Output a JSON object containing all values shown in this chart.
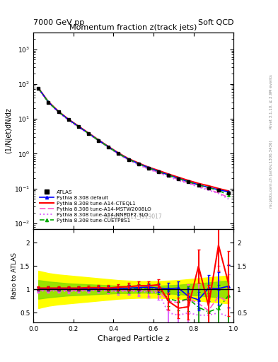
{
  "title_top_left": "7000 GeV pp",
  "title_top_right": "Soft QCD",
  "main_title": "Momentum fraction z(track jets)",
  "watermark": "ATLAS_2011_I919017",
  "right_label_top": "Rivet 3.1.10, ≥ 2.9M events",
  "right_label_bottom": "mcplots.cern.ch [arXiv:1306.3436]",
  "xlabel": "Charged Particle z",
  "ylabel_main": "(1/Njet)dN/dz",
  "ylabel_ratio": "Ratio to ATLAS",
  "xlim": [
    0.0,
    1.0
  ],
  "ylim_main": [
    0.007,
    3000
  ],
  "ylim_ratio": [
    0.3,
    2.3
  ],
  "z_values": [
    0.025,
    0.075,
    0.125,
    0.175,
    0.225,
    0.275,
    0.325,
    0.375,
    0.425,
    0.475,
    0.525,
    0.575,
    0.625,
    0.675,
    0.725,
    0.775,
    0.825,
    0.875,
    0.925,
    0.975
  ],
  "atlas_y": [
    75.0,
    30.0,
    16.0,
    9.5,
    6.0,
    3.8,
    2.4,
    1.55,
    1.0,
    0.68,
    0.5,
    0.38,
    0.3,
    0.24,
    0.19,
    0.155,
    0.125,
    0.105,
    0.09,
    0.075
  ],
  "atlas_yerr": [
    3.0,
    1.2,
    0.65,
    0.4,
    0.25,
    0.15,
    0.1,
    0.06,
    0.04,
    0.03,
    0.02,
    0.015,
    0.012,
    0.01,
    0.008,
    0.006,
    0.005,
    0.005,
    0.005,
    0.005
  ],
  "pythia_default_y": [
    76.0,
    30.5,
    16.2,
    9.6,
    6.1,
    3.85,
    2.45,
    1.58,
    1.02,
    0.7,
    0.52,
    0.4,
    0.31,
    0.245,
    0.195,
    0.158,
    0.128,
    0.108,
    0.092,
    0.08
  ],
  "pythia_cteql1_y": [
    77.0,
    31.0,
    16.5,
    9.8,
    6.2,
    3.95,
    2.5,
    1.6,
    1.05,
    0.72,
    0.54,
    0.41,
    0.33,
    0.26,
    0.21,
    0.17,
    0.14,
    0.12,
    0.1,
    0.085
  ],
  "pythia_mstw_y": [
    74.0,
    29.5,
    15.8,
    9.3,
    5.9,
    3.75,
    2.38,
    1.52,
    0.98,
    0.67,
    0.49,
    0.37,
    0.29,
    0.23,
    0.18,
    0.145,
    0.115,
    0.095,
    0.075,
    0.055
  ],
  "pythia_nnpdf_y": [
    73.0,
    29.0,
    15.5,
    9.1,
    5.8,
    3.7,
    2.35,
    1.5,
    0.96,
    0.66,
    0.48,
    0.36,
    0.28,
    0.22,
    0.17,
    0.14,
    0.11,
    0.09,
    0.072,
    0.05
  ],
  "pythia_cuetp_y": [
    75.5,
    30.2,
    16.1,
    9.55,
    6.05,
    3.82,
    2.42,
    1.55,
    1.0,
    0.69,
    0.51,
    0.39,
    0.305,
    0.242,
    0.192,
    0.156,
    0.126,
    0.106,
    0.088,
    0.065
  ],
  "ratio_default_y": [
    1.01,
    1.02,
    1.01,
    1.01,
    1.02,
    1.01,
    1.02,
    1.02,
    1.02,
    1.03,
    1.04,
    1.05,
    1.03,
    1.02,
    1.03,
    0.85,
    0.78,
    1.03,
    1.02,
    1.07
  ],
  "ratio_cteql1_y": [
    1.03,
    1.03,
    1.03,
    1.03,
    1.03,
    1.04,
    1.04,
    1.03,
    1.05,
    1.06,
    1.08,
    1.08,
    1.1,
    0.75,
    0.6,
    0.63,
    1.5,
    0.65,
    1.95,
    1.13
  ],
  "ratio_mstw_y": [
    0.99,
    0.98,
    0.99,
    0.98,
    0.98,
    0.99,
    0.99,
    0.98,
    0.98,
    0.98,
    0.98,
    0.97,
    0.97,
    0.75,
    0.72,
    0.8,
    0.7,
    0.55,
    0.85,
    0.73
  ],
  "ratio_nnpdf_y": [
    0.97,
    0.97,
    0.97,
    0.96,
    0.97,
    0.97,
    0.98,
    0.97,
    0.96,
    0.97,
    0.96,
    0.95,
    0.93,
    0.5,
    0.45,
    0.5,
    0.45,
    0.45,
    0.5,
    0.42
  ],
  "ratio_cuetp_y": [
    1.01,
    1.01,
    1.01,
    1.01,
    1.01,
    1.01,
    1.01,
    1.0,
    1.0,
    1.01,
    1.02,
    1.03,
    1.02,
    0.8,
    0.75,
    0.8,
    0.62,
    0.52,
    0.6,
    0.87
  ],
  "ratio_yerr_default": [
    0.04,
    0.04,
    0.04,
    0.04,
    0.04,
    0.04,
    0.04,
    0.05,
    0.05,
    0.06,
    0.06,
    0.07,
    0.08,
    0.12,
    0.15,
    0.18,
    0.22,
    0.28,
    0.35,
    0.45
  ],
  "ratio_yerr_cteql1": [
    0.04,
    0.04,
    0.04,
    0.04,
    0.04,
    0.04,
    0.05,
    0.06,
    0.07,
    0.08,
    0.09,
    0.1,
    0.12,
    0.18,
    0.22,
    0.28,
    0.35,
    0.45,
    0.55,
    0.7
  ],
  "ratio_yerr_mstw": [
    0.04,
    0.04,
    0.04,
    0.04,
    0.04,
    0.04,
    0.05,
    0.06,
    0.07,
    0.08,
    0.1,
    0.12,
    0.14,
    0.2,
    0.25,
    0.32,
    0.42,
    0.52,
    0.65,
    0.8
  ],
  "ratio_yerr_nnpdf": [
    0.04,
    0.04,
    0.04,
    0.04,
    0.04,
    0.04,
    0.05,
    0.06,
    0.07,
    0.08,
    0.1,
    0.12,
    0.15,
    0.22,
    0.28,
    0.36,
    0.46,
    0.58,
    0.7,
    0.9
  ],
  "ratio_yerr_cuetp": [
    0.04,
    0.04,
    0.04,
    0.04,
    0.04,
    0.04,
    0.05,
    0.06,
    0.07,
    0.08,
    0.09,
    0.1,
    0.12,
    0.16,
    0.2,
    0.26,
    0.32,
    0.4,
    0.5,
    0.65
  ],
  "band_yellow_lo": [
    0.6,
    0.65,
    0.68,
    0.7,
    0.72,
    0.74,
    0.76,
    0.78,
    0.8,
    0.81,
    0.82,
    0.82,
    0.82,
    0.81,
    0.8,
    0.78,
    0.76,
    0.74,
    0.72,
    0.7
  ],
  "band_yellow_hi": [
    1.4,
    1.35,
    1.32,
    1.3,
    1.28,
    1.26,
    1.24,
    1.22,
    1.2,
    1.19,
    1.18,
    1.18,
    1.18,
    1.19,
    1.2,
    1.22,
    1.24,
    1.26,
    1.28,
    1.3
  ],
  "band_green_lo": [
    0.8,
    0.83,
    0.85,
    0.87,
    0.88,
    0.89,
    0.9,
    0.91,
    0.92,
    0.92,
    0.93,
    0.93,
    0.92,
    0.91,
    0.9,
    0.88,
    0.87,
    0.85,
    0.83,
    0.81
  ],
  "band_green_hi": [
    1.2,
    1.17,
    1.15,
    1.13,
    1.12,
    1.11,
    1.1,
    1.09,
    1.08,
    1.08,
    1.07,
    1.07,
    1.08,
    1.09,
    1.1,
    1.12,
    1.13,
    1.15,
    1.17,
    1.19
  ],
  "color_atlas": "#000000",
  "color_default": "#0000ff",
  "color_cteql1": "#ff0000",
  "color_mstw": "#ff55cc",
  "color_nnpdf": "#dd66ff",
  "color_cuetp": "#00aa00",
  "color_band_yellow": "#ffff00",
  "color_band_green": "#88dd00"
}
